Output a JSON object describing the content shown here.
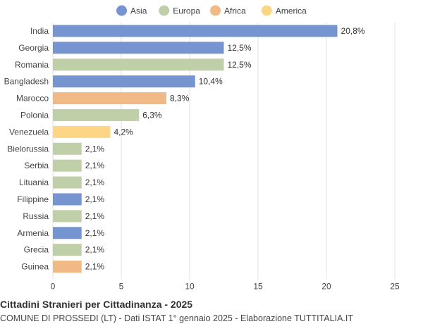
{
  "chart_data": {
    "type": "bar",
    "orientation": "horizontal",
    "title": "Cittadini Stranieri per Cittadinanza - 2025",
    "subtitle": "COMUNE DI PROSSEDI (LT) - Dati ISTAT 1° gennaio 2025 - Elaborazione TUTTITALIA.IT",
    "legend": {
      "position": "top",
      "entries": [
        {
          "name": "Asia",
          "color": "#7694cf"
        },
        {
          "name": "Europa",
          "color": "#bfd0a8"
        },
        {
          "name": "Africa",
          "color": "#f0b985"
        },
        {
          "name": "America",
          "color": "#fdd685"
        }
      ]
    },
    "categories": [
      "India",
      "Georgia",
      "Romania",
      "Bangladesh",
      "Marocco",
      "Polonia",
      "Venezuela",
      "Bielorussia",
      "Serbia",
      "Lituania",
      "Filippine",
      "Russia",
      "Armenia",
      "Grecia",
      "Guinea"
    ],
    "values": [
      20.8,
      12.5,
      12.5,
      10.4,
      8.3,
      6.3,
      4.2,
      2.1,
      2.1,
      2.1,
      2.1,
      2.1,
      2.1,
      2.1,
      2.1
    ],
    "value_labels": [
      "20,8%",
      "12,5%",
      "12,5%",
      "10,4%",
      "8,3%",
      "6,3%",
      "4,2%",
      "2,1%",
      "2,1%",
      "2,1%",
      "2,1%",
      "2,1%",
      "2,1%",
      "2,1%",
      "2,1%"
    ],
    "groups": [
      "Asia",
      "Asia",
      "Europa",
      "Asia",
      "Africa",
      "Europa",
      "America",
      "Europa",
      "Europa",
      "Europa",
      "Asia",
      "Europa",
      "Asia",
      "Europa",
      "Africa"
    ],
    "xlim": [
      0,
      25
    ],
    "xticks": [
      0,
      5,
      10,
      15,
      20,
      25
    ],
    "xtick_labels": [
      "0",
      "5",
      "10",
      "15",
      "20",
      "25"
    ],
    "grid": true
  }
}
